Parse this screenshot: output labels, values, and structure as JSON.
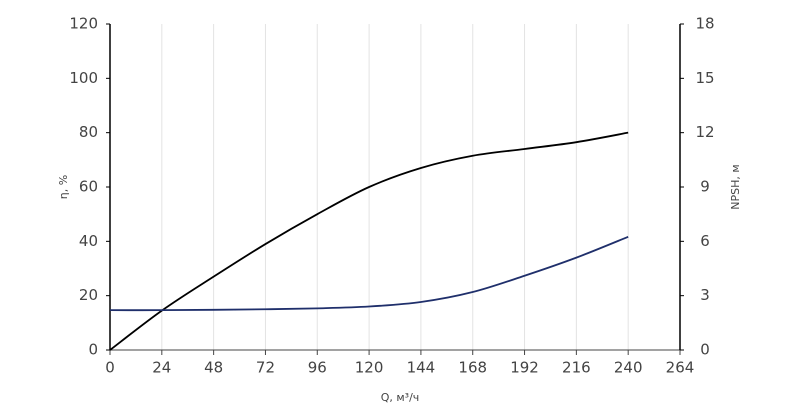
{
  "chart_data": {
    "type": "line",
    "x_label": "Q, м³/ч",
    "y_label": "η, %",
    "y2_label": "NPSH, м",
    "x": [
      0,
      24,
      48,
      72,
      96,
      120,
      144,
      168,
      192,
      216,
      240
    ],
    "series": [
      {
        "name": "η",
        "color": "#000000",
        "values": [
          0,
          14.5,
          27,
          39,
          50,
          60,
          67,
          71.5,
          74,
          76.5,
          80
        ]
      },
      {
        "name": "NPSH",
        "color": "#1f2f6b",
        "axis": "y2",
        "values": [
          2.2,
          2.2,
          2.22,
          2.25,
          2.3,
          2.4,
          2.65,
          3.2,
          4.1,
          5.1,
          6.25
        ]
      }
    ],
    "xlim": [
      0,
      264
    ],
    "xticks": [
      0,
      24,
      48,
      72,
      96,
      120,
      144,
      168,
      192,
      216,
      240,
      264
    ],
    "ylim": [
      0,
      120
    ],
    "yticks": [
      0,
      20,
      40,
      60,
      80,
      100,
      120
    ],
    "y2lim": [
      0,
      18
    ],
    "y2ticks": [
      0,
      3,
      6,
      9,
      12,
      15,
      18
    ],
    "grid": true
  }
}
